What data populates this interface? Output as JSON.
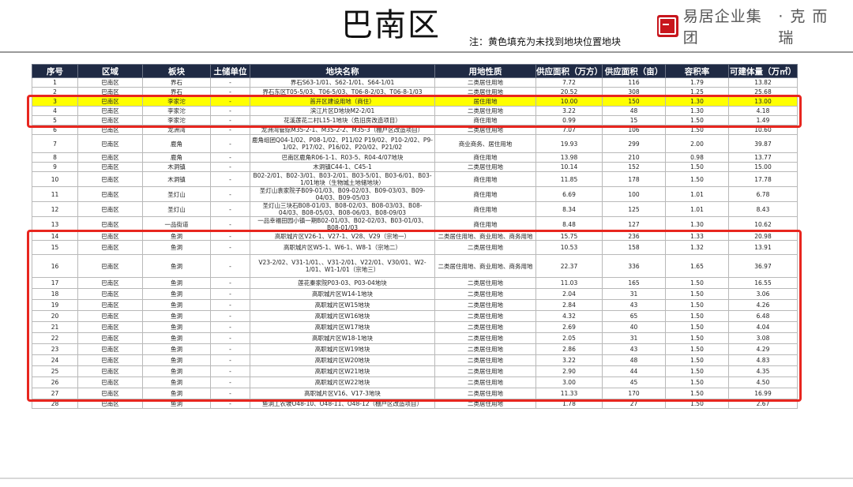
{
  "header": {
    "title": "巴南区",
    "note": "注：黄色填充为未找到地块位置地块",
    "brand_name": "易居企业集团",
    "brand_sub": "·克而瑞"
  },
  "table": {
    "columns": [
      "序号",
      "区域",
      "板块",
      "土储单位",
      "地块名称",
      "用地性质",
      "供应面积（万方）",
      "供应面积（亩）",
      "容积率",
      "可建体量（万㎡）"
    ],
    "rows": [
      {
        "no": "1",
        "area": "巴南区",
        "block": "界石",
        "unit": "-",
        "name": "界石S63-1/01、S62-1/01、S64-1/01",
        "use": "二类居住用地",
        "wan": "7.72",
        "mu": "116",
        "far": "1.79",
        "vol": "13.82",
        "h": 12
      },
      {
        "no": "2",
        "area": "巴南区",
        "block": "界石",
        "unit": "-",
        "name": "界石东区T05-5/03、T06-5/03、T06-8-2/03、T06-8-1/03",
        "use": "二类居住用地",
        "wan": "20.52",
        "mu": "308",
        "far": "1.25",
        "vol": "25.68",
        "h": 12
      },
      {
        "no": "3",
        "area": "巴南区",
        "block": "李家沱",
        "unit": "-",
        "name": "首开区建设用地（商住）",
        "use": "居住用地",
        "wan": "10.00",
        "mu": "150",
        "far": "1.30",
        "vol": "13.00",
        "h": 12,
        "hl": true
      },
      {
        "no": "4",
        "area": "巴南区",
        "block": "李家沱",
        "unit": "-",
        "name": "滨江片区D地块M2-2/01",
        "use": "二类居住用地",
        "wan": "3.22",
        "mu": "48",
        "far": "1.30",
        "vol": "4.18",
        "h": 12
      },
      {
        "no": "5",
        "area": "巴南区",
        "block": "李家沱",
        "unit": "-",
        "name": "花溪莲花二村L15-1地块（危旧房改造项目）",
        "use": "商住用地",
        "wan": "0.99",
        "mu": "15",
        "far": "1.50",
        "vol": "1.49",
        "h": 12
      },
      {
        "no": "6",
        "area": "巴南区",
        "block": "龙洲湾",
        "unit": "-",
        "name": "龙洲湾管综M35-2-1、M35-2-2、M35-3（棚户区改造项目）",
        "use": "二类居住用地",
        "wan": "7.07",
        "mu": "106",
        "far": "1.50",
        "vol": "10.60",
        "h": 12
      },
      {
        "no": "7",
        "area": "巴南区",
        "block": "鹿角",
        "unit": "-",
        "name": "鹿角组团Q04-1/02、P08-1/02、P11/02 P19/02、P10-2/02、P9-1/02、P17/02、P16/02、P20/02、P21/02",
        "use": "商业商务、居住用地",
        "wan": "19.93",
        "mu": "299",
        "far": "2.00",
        "vol": "39.87",
        "h": 23
      },
      {
        "no": "8",
        "area": "巴南区",
        "block": "鹿角",
        "unit": "-",
        "name": "巴南区鹿角R06-1-1、R03-5、R04-4/07地块",
        "use": "商住用地",
        "wan": "13.98",
        "mu": "210",
        "far": "0.98",
        "vol": "13.77",
        "h": 12
      },
      {
        "no": "9",
        "area": "巴南区",
        "block": "木洞镇",
        "unit": "-",
        "name": "木洞镇C44-1、C45-1",
        "use": "二类居住用地",
        "wan": "10.14",
        "mu": "152",
        "far": "1.50",
        "vol": "15.00",
        "h": 12
      },
      {
        "no": "10",
        "area": "巴南区",
        "block": "木洞镇",
        "unit": "-",
        "name": "B02-2/01、B02-3/01、B03-2/01、B03-5/01、B03-6/01、B03-1/01地块（生物城土地储地块）",
        "use": "商住用地",
        "wan": "11.85",
        "mu": "178",
        "far": "1.50",
        "vol": "17.78",
        "h": 19
      },
      {
        "no": "11",
        "area": "巴南区",
        "block": "圣灯山",
        "unit": "-",
        "name": "圣灯山袁家院子B09-01/03、B09-02/03、B09-03/03、B09-04/03、B09-05/03",
        "use": "商住用地",
        "wan": "6.69",
        "mu": "100",
        "far": "1.01",
        "vol": "6.78",
        "h": 19
      },
      {
        "no": "12",
        "area": "巴南区",
        "block": "圣灯山",
        "unit": "-",
        "name": "圣灯山三块石B08-01/03、B08-02/03、B08-03/03、B08-04/03、B08-05/03、B08-06/03、B08-09/03",
        "use": "商住用地",
        "wan": "8.34",
        "mu": "125",
        "far": "1.01",
        "vol": "8.43",
        "h": 19
      },
      {
        "no": "13",
        "area": "巴南区",
        "block": "一品街道",
        "unit": "-",
        "name": "一品幸福田园小镇一期B02-01/03、B02-02/03、B03-01/03、B08-01/03",
        "use": "商住用地",
        "wan": "8.48",
        "mu": "127",
        "far": "1.30",
        "vol": "10.62",
        "h": 19
      },
      {
        "no": "14",
        "area": "巴南区",
        "block": "鱼洞",
        "unit": "-",
        "name": "高职城片区V26-1、V27-1、V28、V29（宗地一）",
        "use": "二类居住用地、商业用地、商务用地",
        "wan": "15.75",
        "mu": "236",
        "far": "1.33",
        "vol": "20.98",
        "h": 11
      },
      {
        "no": "15",
        "area": "巴南区",
        "block": "鱼洞",
        "unit": "-",
        "name": "高职城片区W5-1、W6-1、W8-1（宗地二）",
        "use": "二类居住用地",
        "wan": "10.53",
        "mu": "158",
        "far": "1.32",
        "vol": "13.91",
        "h": 18
      },
      {
        "no": "16",
        "area": "巴南区",
        "block": "鱼洞",
        "unit": "-",
        "name": "V23-2/02、V31-1/01、、V31-2/01、V22/01、V30/01、W2-1/01、W1-1/01（宗地三）",
        "use": "二类居住用地、商业用地、商务用地",
        "wan": "22.37",
        "mu": "336",
        "far": "1.65",
        "vol": "36.97",
        "h": 29
      },
      {
        "no": "17",
        "area": "巴南区",
        "block": "鱼洞",
        "unit": "-",
        "name": "莲花秦家院P03-03、P03-04地块",
        "use": "二类居住用地",
        "wan": "11.03",
        "mu": "165",
        "far": "1.50",
        "vol": "16.55",
        "h": 14
      },
      {
        "no": "18",
        "area": "巴南区",
        "block": "鱼洞",
        "unit": "-",
        "name": "高职城片区W14-1地块",
        "use": "二类居住用地",
        "wan": "2.04",
        "mu": "31",
        "far": "1.50",
        "vol": "3.06",
        "h": 14
      },
      {
        "no": "19",
        "area": "巴南区",
        "block": "鱼洞",
        "unit": "-",
        "name": "高职城片区W15地块",
        "use": "二类居住用地",
        "wan": "2.84",
        "mu": "43",
        "far": "1.50",
        "vol": "4.26",
        "h": 14
      },
      {
        "no": "20",
        "area": "巴南区",
        "block": "鱼洞",
        "unit": "-",
        "name": "高职城片区W16地块",
        "use": "二类居住用地",
        "wan": "4.32",
        "mu": "65",
        "far": "1.50",
        "vol": "6.48",
        "h": 14
      },
      {
        "no": "21",
        "area": "巴南区",
        "block": "鱼洞",
        "unit": "-",
        "name": "高职城片区W17地块",
        "use": "二类居住用地",
        "wan": "2.69",
        "mu": "40",
        "far": "1.50",
        "vol": "4.04",
        "h": 14
      },
      {
        "no": "22",
        "area": "巴南区",
        "block": "鱼洞",
        "unit": "-",
        "name": "高职城片区W18-1地块",
        "use": "二类居住用地",
        "wan": "2.05",
        "mu": "31",
        "far": "1.50",
        "vol": "3.08",
        "h": 14
      },
      {
        "no": "23",
        "area": "巴南区",
        "block": "鱼洞",
        "unit": "-",
        "name": "高职城片区W19地块",
        "use": "二类居住用地",
        "wan": "2.86",
        "mu": "43",
        "far": "1.50",
        "vol": "4.29",
        "h": 14
      },
      {
        "no": "24",
        "area": "巴南区",
        "block": "鱼洞",
        "unit": "-",
        "name": "高职城片区W20地块",
        "use": "二类居住用地",
        "wan": "3.22",
        "mu": "48",
        "far": "1.50",
        "vol": "4.83",
        "h": 14
      },
      {
        "no": "25",
        "area": "巴南区",
        "block": "鱼洞",
        "unit": "-",
        "name": "高职城片区W21地块",
        "use": "二类居住用地",
        "wan": "2.90",
        "mu": "44",
        "far": "1.50",
        "vol": "4.35",
        "h": 14
      },
      {
        "no": "26",
        "area": "巴南区",
        "block": "鱼洞",
        "unit": "-",
        "name": "高职城片区W22地块",
        "use": "二类居住用地",
        "wan": "3.00",
        "mu": "45",
        "far": "1.50",
        "vol": "4.50",
        "h": 14
      },
      {
        "no": "27",
        "area": "巴南区",
        "block": "鱼洞",
        "unit": "-",
        "name": "高职城片区V16、V17-3地块",
        "use": "二类居住用地",
        "wan": "11.33",
        "mu": "170",
        "far": "1.50",
        "vol": "16.99",
        "h": 14
      },
      {
        "no": "28",
        "area": "巴南区",
        "block": "鱼洞",
        "unit": "-",
        "name": "鱼洞工农坡O48-10、O48-11、O48-12（棚户区改造项目）",
        "use": "二类居住用地",
        "wan": "1.78",
        "mu": "27",
        "far": "1.50",
        "vol": "2.67",
        "h": 12
      }
    ],
    "highlight_color": "#ffff00",
    "callout_color": "#e8261f",
    "callouts": [
      {
        "first_row": 3,
        "last_row": 5
      },
      {
        "first_row": 14,
        "last_row": 27
      }
    ]
  }
}
